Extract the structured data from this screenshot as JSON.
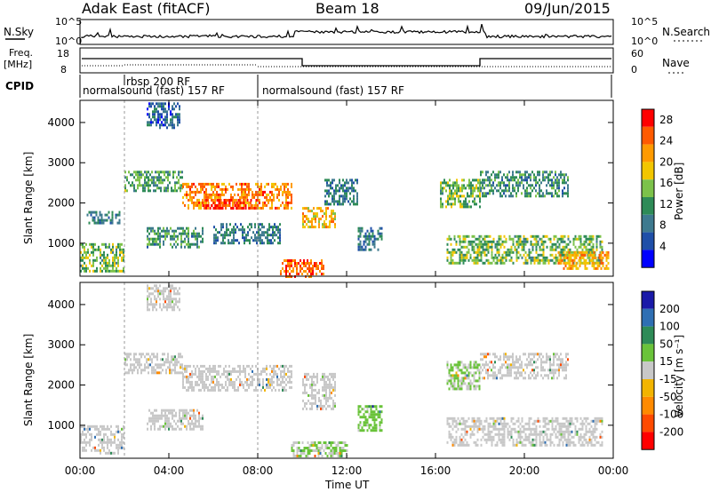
{
  "header": {
    "station": "Adak East (fitACF)",
    "beam": "Beam 18",
    "date": "09/Jun/2015"
  },
  "noise_panel": {
    "left_label": "N.Sky",
    "right_label": "N.Search",
    "left_ticks": [
      "10^5",
      "10^0"
    ],
    "right_ticks": [
      "10^5",
      "10^0"
    ]
  },
  "freq_panel": {
    "left_label_1": "Freq.",
    "left_label_2": "[MHz]",
    "right_label": "Nave",
    "left_ticks": [
      "18",
      "8"
    ],
    "right_ticks": [
      "60",
      "0"
    ]
  },
  "cpid_panel": {
    "label": "CPID",
    "modes": [
      "normalsound (fast) 157 RF",
      "rbsp 200 RF",
      "normalsound (fast) 157 RF"
    ]
  },
  "colors": {
    "power_scale": [
      "#0000ff",
      "#1f4fa8",
      "#3e7a8f",
      "#2e8b57",
      "#7cc24a",
      "#f2c600",
      "#ff9a00",
      "#ff5a00",
      "#ff0000"
    ],
    "velocity_scale": [
      "#1a1aa8",
      "#2f6fb3",
      "#2e8b57",
      "#6ac33a",
      "#c8c8c8",
      "#f2b400",
      "#ff8a00",
      "#ff4a00",
      "#ff0000"
    ]
  },
  "chart_data": [
    {
      "type": "heatmap",
      "title": "",
      "xlabel": "Time UT",
      "ylabel": "Slant Range [km]",
      "x_ticks": [
        "00:00",
        "04:00",
        "08:00",
        "12:00",
        "16:00",
        "20:00",
        "00:00"
      ],
      "y_ticks": [
        "1000",
        "2000",
        "3000",
        "4000"
      ],
      "xlim": [
        0,
        24
      ],
      "ylim": [
        180,
        4550
      ],
      "colorbar": {
        "label": "Power [dB]",
        "ticks": [
          "4",
          "8",
          "12",
          "16",
          "20",
          "24",
          "28"
        ],
        "range": [
          0,
          30
        ]
      },
      "echo_regions": [
        {
          "t_start": 0.3,
          "t_end": 1.8,
          "r_min": 1500,
          "r_max": 1800,
          "power_db": 8
        },
        {
          "t_start": 0.0,
          "t_end": 2.0,
          "r_min": 300,
          "r_max": 1000,
          "power_db": 14
        },
        {
          "t_start": 2.0,
          "t_end": 4.6,
          "r_min": 2300,
          "r_max": 2800,
          "power_db": 12
        },
        {
          "t_start": 4.6,
          "t_end": 9.5,
          "r_min": 1900,
          "r_max": 2500,
          "power_db": 24
        },
        {
          "t_start": 5.5,
          "t_end": 8.0,
          "r_min": 1900,
          "r_max": 2100,
          "power_db": 28
        },
        {
          "t_start": 3.0,
          "t_end": 5.5,
          "r_min": 900,
          "r_max": 1400,
          "power_db": 10
        },
        {
          "t_start": 6.0,
          "t_end": 9.0,
          "r_min": 1000,
          "r_max": 1500,
          "power_db": 8
        },
        {
          "t_start": 9.0,
          "t_end": 11.0,
          "r_min": 200,
          "r_max": 600,
          "power_db": 26
        },
        {
          "t_start": 10.0,
          "t_end": 11.5,
          "r_min": 1400,
          "r_max": 1900,
          "power_db": 20
        },
        {
          "t_start": 11.0,
          "t_end": 12.5,
          "r_min": 2000,
          "r_max": 2600,
          "power_db": 8
        },
        {
          "t_start": 12.5,
          "t_end": 13.6,
          "r_min": 850,
          "r_max": 1400,
          "power_db": 8
        },
        {
          "t_start": 16.2,
          "t_end": 18.0,
          "r_min": 1900,
          "r_max": 2600,
          "power_db": 14
        },
        {
          "t_start": 18.0,
          "t_end": 22.0,
          "r_min": 2200,
          "r_max": 2800,
          "power_db": 10
        },
        {
          "t_start": 16.5,
          "t_end": 23.5,
          "r_min": 500,
          "r_max": 1200,
          "power_db": 14
        },
        {
          "t_start": 21.5,
          "t_end": 23.8,
          "r_min": 400,
          "r_max": 800,
          "power_db": 22
        },
        {
          "t_start": 3.0,
          "t_end": 4.5,
          "r_min": 3900,
          "r_max": 4500,
          "power_db": 6
        }
      ]
    },
    {
      "type": "heatmap",
      "title": "",
      "xlabel": "Time UT",
      "ylabel": "Slant Range [km]",
      "x_ticks": [
        "00:00",
        "04:00",
        "08:00",
        "12:00",
        "16:00",
        "20:00",
        "00:00"
      ],
      "y_ticks": [
        "1000",
        "2000",
        "3000",
        "4000"
      ],
      "xlim": [
        0,
        24
      ],
      "ylim": [
        180,
        4550
      ],
      "colorbar": {
        "label": "Velocity [m s⁻¹]",
        "ticks": [
          "200",
          "100",
          "50",
          "15",
          "-15",
          "-50",
          "-100",
          "-200"
        ],
        "range": [
          -250,
          250
        ]
      },
      "echo_regions": [
        {
          "t_start": 0.0,
          "t_end": 2.0,
          "r_min": 300,
          "r_max": 1000,
          "velocity": 0
        },
        {
          "t_start": 2.0,
          "t_end": 4.6,
          "r_min": 2300,
          "r_max": 2800,
          "velocity": 0
        },
        {
          "t_start": 4.6,
          "t_end": 9.5,
          "r_min": 1900,
          "r_max": 2500,
          "velocity": 0
        },
        {
          "t_start": 3.0,
          "t_end": 5.5,
          "r_min": 900,
          "r_max": 1400,
          "velocity": 0
        },
        {
          "t_start": 10.0,
          "t_end": 11.5,
          "r_min": 1400,
          "r_max": 2300,
          "velocity": -20
        },
        {
          "t_start": 12.5,
          "t_end": 13.6,
          "r_min": 850,
          "r_max": 1500,
          "velocity": 40
        },
        {
          "t_start": 9.5,
          "t_end": 12.0,
          "r_min": 250,
          "r_max": 600,
          "velocity": 30
        },
        {
          "t_start": 16.5,
          "t_end": 18.0,
          "r_min": 1900,
          "r_max": 2600,
          "velocity": 30
        },
        {
          "t_start": 18.0,
          "t_end": 22.0,
          "r_min": 2200,
          "r_max": 2800,
          "velocity": 0
        },
        {
          "t_start": 16.5,
          "t_end": 23.5,
          "r_min": 500,
          "r_max": 1200,
          "velocity": 0
        },
        {
          "t_start": 3.0,
          "t_end": 4.5,
          "r_min": 3900,
          "r_max": 4500,
          "velocity": 0
        }
      ]
    }
  ]
}
